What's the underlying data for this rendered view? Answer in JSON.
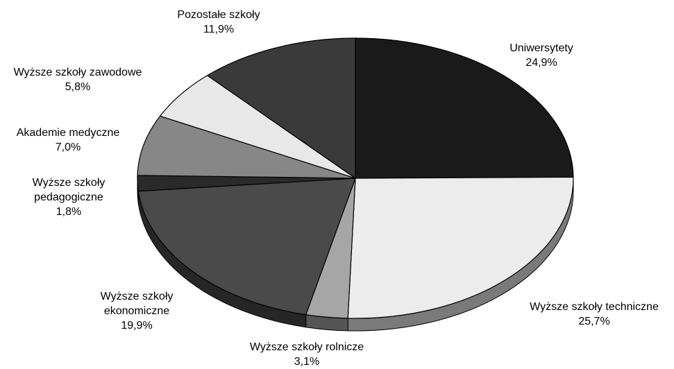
{
  "chart_data": {
    "type": "pie",
    "style": "3d",
    "title": "",
    "slices": [
      {
        "label_lines": [
          "Uniwersytety"
        ],
        "value_label": "24,9%",
        "value": 24.9,
        "color": "#1a1a1a",
        "side_color": "#111111"
      },
      {
        "label_lines": [
          "Wyższe szkoły techniczne"
        ],
        "value_label": "25,7%",
        "value": 25.7,
        "color": "#ececec",
        "side_color": "#7a7a7a"
      },
      {
        "label_lines": [
          "Wyższe szkoły rolnicze"
        ],
        "value_label": "3,1%",
        "value": 3.1,
        "color": "#a6a6a6",
        "side_color": "#555555"
      },
      {
        "label_lines": [
          "Wyższe szkoły",
          "ekonomiczne"
        ],
        "value_label": "19,9%",
        "value": 19.9,
        "color": "#4a4a4a",
        "side_color": "#262626"
      },
      {
        "label_lines": [
          "Wyższe szkoły",
          "pedagogiczne"
        ],
        "value_label": "1,8%",
        "value": 1.8,
        "color": "#2a2a2a",
        "side_color": "#151515"
      },
      {
        "label_lines": [
          "Akademie medyczne"
        ],
        "value_label": "7,0%",
        "value": 7.0,
        "color": "#878787",
        "side_color": "#4a4a4a"
      },
      {
        "label_lines": [
          "Wyższe szkoły zawodowe"
        ],
        "value_label": "5,8%",
        "value": 5.8,
        "color": "#e8e8e8",
        "side_color": "#7a7a7a"
      },
      {
        "label_lines": [
          "Pozostałe szkoły"
        ],
        "value_label": "11,9%",
        "value": 11.9,
        "color": "#3a3a3a",
        "side_color": "#1e1e1e"
      }
    ]
  }
}
